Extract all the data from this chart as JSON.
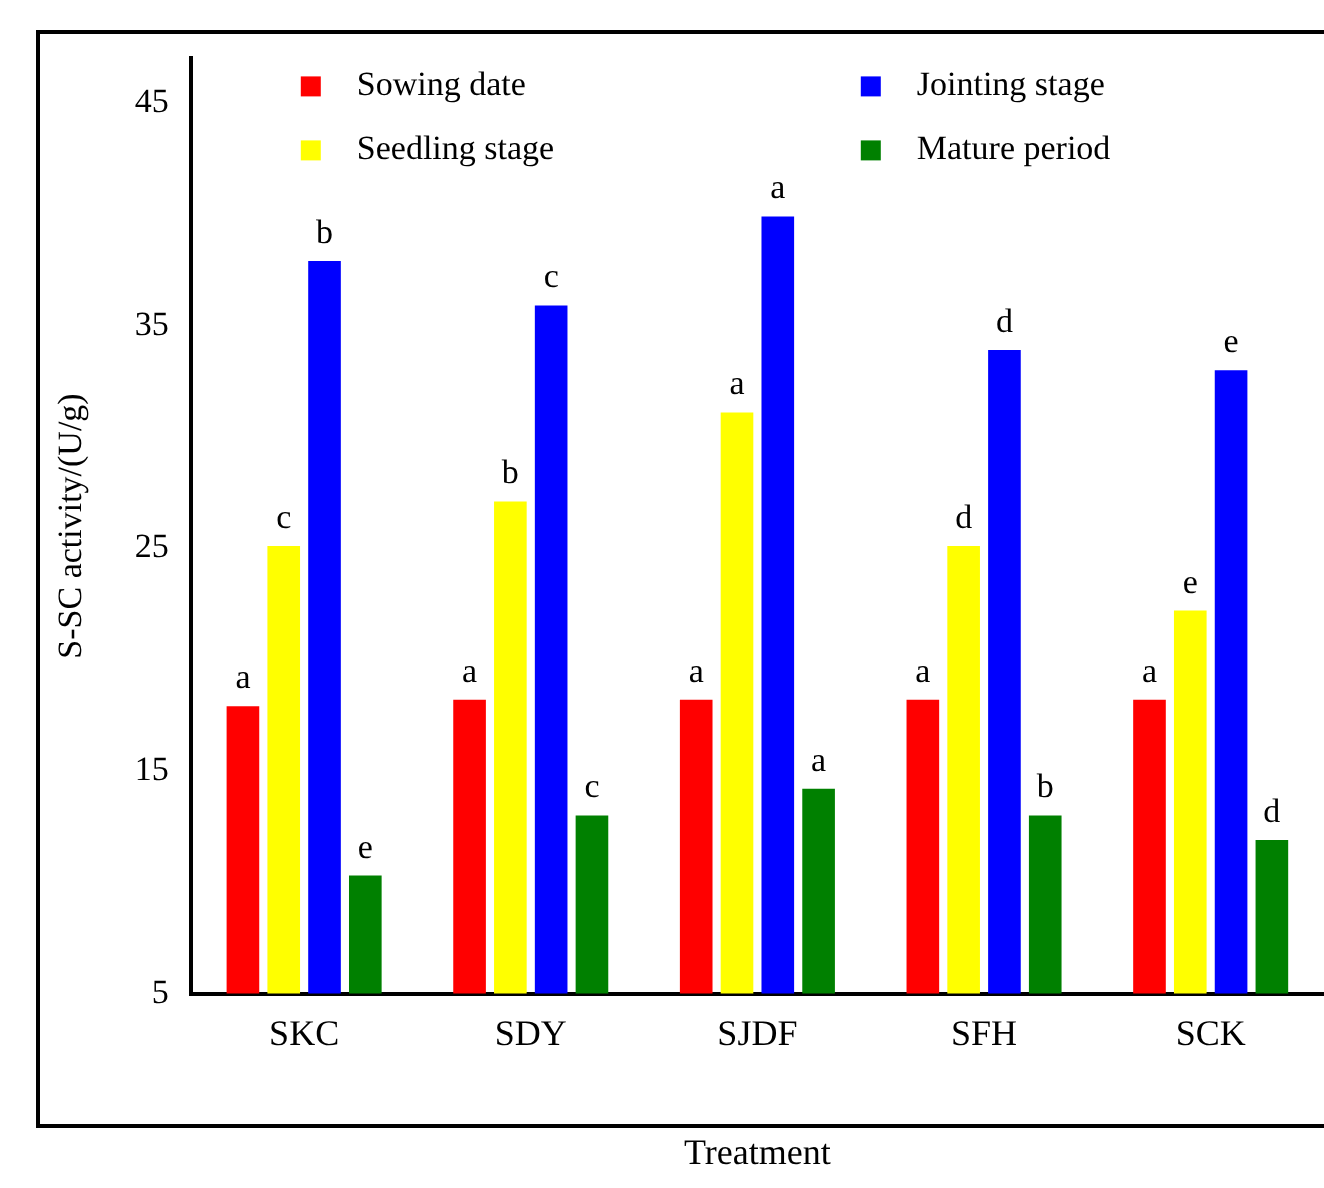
{
  "chart_data": {
    "type": "bar",
    "xlabel": "Treatment",
    "ylabel": "S-SC activity/(U/g)",
    "categories": [
      "SKC",
      "SDY",
      "SJDF",
      "SFH",
      "SCK"
    ],
    "series": [
      {
        "name": "Sowing date",
        "color": "#ff0000",
        "values": [
          17.9,
          18.2,
          18.2,
          18.2,
          18.2
        ],
        "value_labels": [
          "a",
          "a",
          "a",
          "a",
          "a"
        ]
      },
      {
        "name": "Seedling stage",
        "color": "#ffff00",
        "values": [
          25.1,
          27.1,
          31.1,
          25.1,
          22.2
        ],
        "value_labels": [
          "c",
          "b",
          "a",
          "d",
          "e"
        ]
      },
      {
        "name": "Jointing stage",
        "color": "#0000ff",
        "values": [
          37.9,
          35.9,
          39.9,
          33.9,
          33.0
        ],
        "value_labels": [
          "b",
          "c",
          "a",
          "d",
          "e"
        ]
      },
      {
        "name": "Mature period",
        "color": "#008000",
        "values": [
          10.3,
          13.0,
          14.2,
          13.0,
          11.9
        ],
        "value_labels": [
          "e",
          "c",
          "a",
          "b",
          "d"
        ]
      }
    ],
    "ylim": [
      5,
      47
    ],
    "yticks": [
      5,
      15,
      25,
      35,
      45
    ],
    "grid": false,
    "legend": "top"
  }
}
